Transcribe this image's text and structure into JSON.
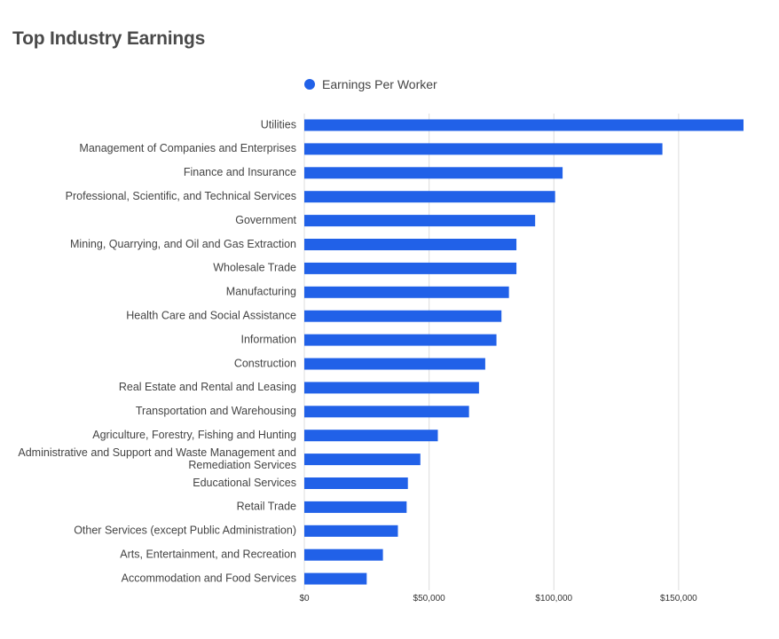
{
  "page": {
    "title": "Top Industry Earnings"
  },
  "colors": {
    "bar": "#2161e8",
    "grid": "#dcdcdc",
    "axis_text": "#333333",
    "label_text": "#444444"
  },
  "chart_data": {
    "type": "bar",
    "orientation": "horizontal",
    "title": "Top Industry Earnings",
    "legend": {
      "position": "top",
      "entries": [
        "Earnings Per Worker"
      ]
    },
    "series": [
      {
        "name": "Earnings Per Worker",
        "values": [
          176000,
          143500,
          103500,
          100500,
          92500,
          85000,
          85000,
          82000,
          79000,
          77000,
          72500,
          70000,
          66000,
          53500,
          46500,
          41500,
          41000,
          37500,
          31500,
          25000
        ]
      }
    ],
    "categories": [
      "Utilities",
      "Management of Companies and Enterprises",
      "Finance and Insurance",
      "Professional, Scientific, and Technical Services",
      "Government",
      "Mining, Quarrying, and Oil and Gas Extraction",
      "Wholesale Trade",
      "Manufacturing",
      "Health Care and Social Assistance",
      "Information",
      "Construction",
      "Real Estate and Rental and Leasing",
      "Transportation and Warehousing",
      "Agriculture, Forestry, Fishing and Hunting",
      "Administrative and Support and Waste Management and Remediation Services",
      "Educational Services",
      "Retail Trade",
      "Other Services (except Public Administration)",
      "Arts, Entertainment, and Recreation",
      "Accommodation and Food Services"
    ],
    "category_display_lines": [
      [
        "Utilities"
      ],
      [
        "Management of Companies and Enterprises"
      ],
      [
        "Finance and Insurance"
      ],
      [
        "Professional, Scientific, and Technical Services"
      ],
      [
        "Government"
      ],
      [
        "Mining, Quarrying, and Oil and Gas Extraction"
      ],
      [
        "Wholesale Trade"
      ],
      [
        "Manufacturing"
      ],
      [
        "Health Care and Social Assistance"
      ],
      [
        "Information"
      ],
      [
        "Construction"
      ],
      [
        "Real Estate and Rental and Leasing"
      ],
      [
        "Transportation and Warehousing"
      ],
      [
        "Agriculture, Forestry, Fishing and Hunting"
      ],
      [
        "Administrative and Support and Waste Management and",
        "Remediation Services"
      ],
      [
        "Educational Services"
      ],
      [
        "Retail Trade"
      ],
      [
        "Other Services (except Public Administration)"
      ],
      [
        "Arts, Entertainment, and Recreation"
      ],
      [
        "Accommodation and Food Services"
      ]
    ],
    "x_axis": {
      "range": [
        0,
        176000
      ],
      "ticks": [
        0,
        50000,
        100000,
        150000
      ],
      "tick_labels": [
        "$0",
        "$50,000",
        "$100,000",
        "$150,000"
      ],
      "grid": true
    }
  }
}
